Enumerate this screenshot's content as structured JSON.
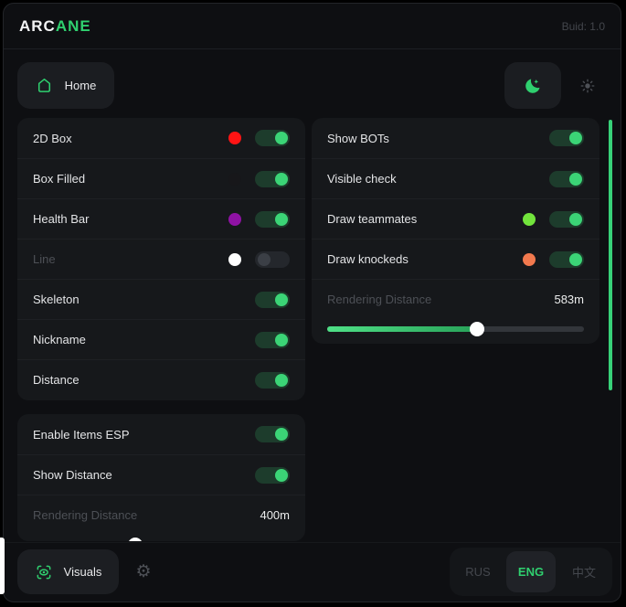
{
  "header": {
    "brand_primary": "ARC",
    "brand_accent": "ANE",
    "build_label": "Buid: 1.0"
  },
  "nav": {
    "home_label": "Home",
    "theme_selected": "dark"
  },
  "sections": {
    "player": {
      "rows": [
        {
          "label": "2D Box",
          "swatch": "#ff1414",
          "toggle": "on"
        },
        {
          "label": "Box Filled",
          "swatch": "#17171a",
          "toggle": "on"
        },
        {
          "label": "Health Bar",
          "swatch": "#8f12a4",
          "toggle": "on"
        },
        {
          "label": "Line",
          "dim": true,
          "swatch": "#ffffff",
          "toggle": "off"
        },
        {
          "label": "Skeleton",
          "toggle": "on"
        },
        {
          "label": "Nickname",
          "toggle": "on"
        },
        {
          "label": "Distance",
          "toggle": "on"
        }
      ]
    },
    "items": {
      "rows": [
        {
          "label": "Enable Items ESP",
          "toggle": "on"
        },
        {
          "label": "Show Distance",
          "toggle": "on"
        },
        {
          "label": "Rendering Distance",
          "dim": true,
          "value": "400m"
        },
        {
          "type": "slider",
          "percent": 40
        }
      ]
    },
    "bots": {
      "rows": [
        {
          "label": "Show BOTs",
          "toggle": "on"
        },
        {
          "label": "Visible check",
          "toggle": "on"
        },
        {
          "label": "Draw teammates",
          "swatch": "#72e43c",
          "toggle": "on"
        },
        {
          "label": "Draw knockeds",
          "swatch": "#f2794e",
          "toggle": "on"
        },
        {
          "label": "Rendering Distance",
          "dim": true,
          "value": "583m"
        },
        {
          "type": "slider",
          "percent": 58.3
        }
      ]
    }
  },
  "footer": {
    "visuals_label": "Visuals",
    "languages": [
      {
        "label": "RUS",
        "active": false
      },
      {
        "label": "ENG",
        "active": true
      },
      {
        "label": "中文",
        "active": false
      }
    ]
  },
  "colors": {
    "accent_green": "#2fd06f",
    "toggle_knob_on": "#3bd476",
    "slider_fill_start": "#4fe087",
    "slider_fill_end": "#28a259",
    "scrollbar_green": "#37d178",
    "dim_text": "#4d5056"
  }
}
